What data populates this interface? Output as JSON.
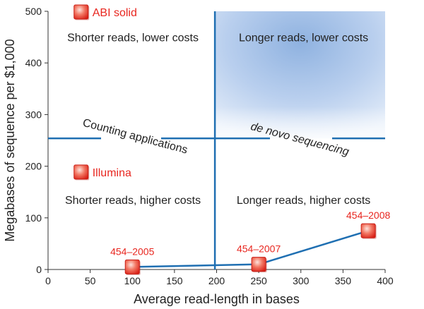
{
  "chart_data": {
    "type": "scatter",
    "xlabel": "Average read-length in bases",
    "ylabel": "Megabases of sequence per $1,000",
    "xlim": [
      0,
      400
    ],
    "ylim": [
      0,
      500
    ],
    "xticks": [
      "0",
      "50",
      "100",
      "150",
      "200",
      "250",
      "300",
      "350",
      "400"
    ],
    "yticks": [
      "0",
      "100",
      "200",
      "300",
      "400",
      "500"
    ],
    "grid": false,
    "divider": {
      "x": 198,
      "y": 254
    },
    "quadrant_labels": {
      "top_left": "Shorter reads, lower costs",
      "top_right": "Longer reads, lower costs",
      "bottom_left": "Shorter reads, higher costs",
      "bottom_right": "Longer reads, higher costs"
    },
    "region_labels": {
      "left": "Counting applications",
      "right": "de novo sequencing"
    },
    "series": [
      {
        "name": "454",
        "points": [
          {
            "x": 100,
            "y": 5,
            "label": "454–2005"
          },
          {
            "x": 250,
            "y": 10,
            "label": "454–2007"
          },
          {
            "x": 380,
            "y": 75,
            "label": "454–2008"
          }
        ]
      }
    ],
    "annotations": [
      {
        "x": 35,
        "y": 500,
        "label": "ABI solid"
      },
      {
        "x": 35,
        "y": 190,
        "label": "Illumina"
      }
    ],
    "colors": {
      "marker": "#e8261f",
      "line": "#1f6fb2",
      "highlight": "#a9c4e6"
    }
  }
}
